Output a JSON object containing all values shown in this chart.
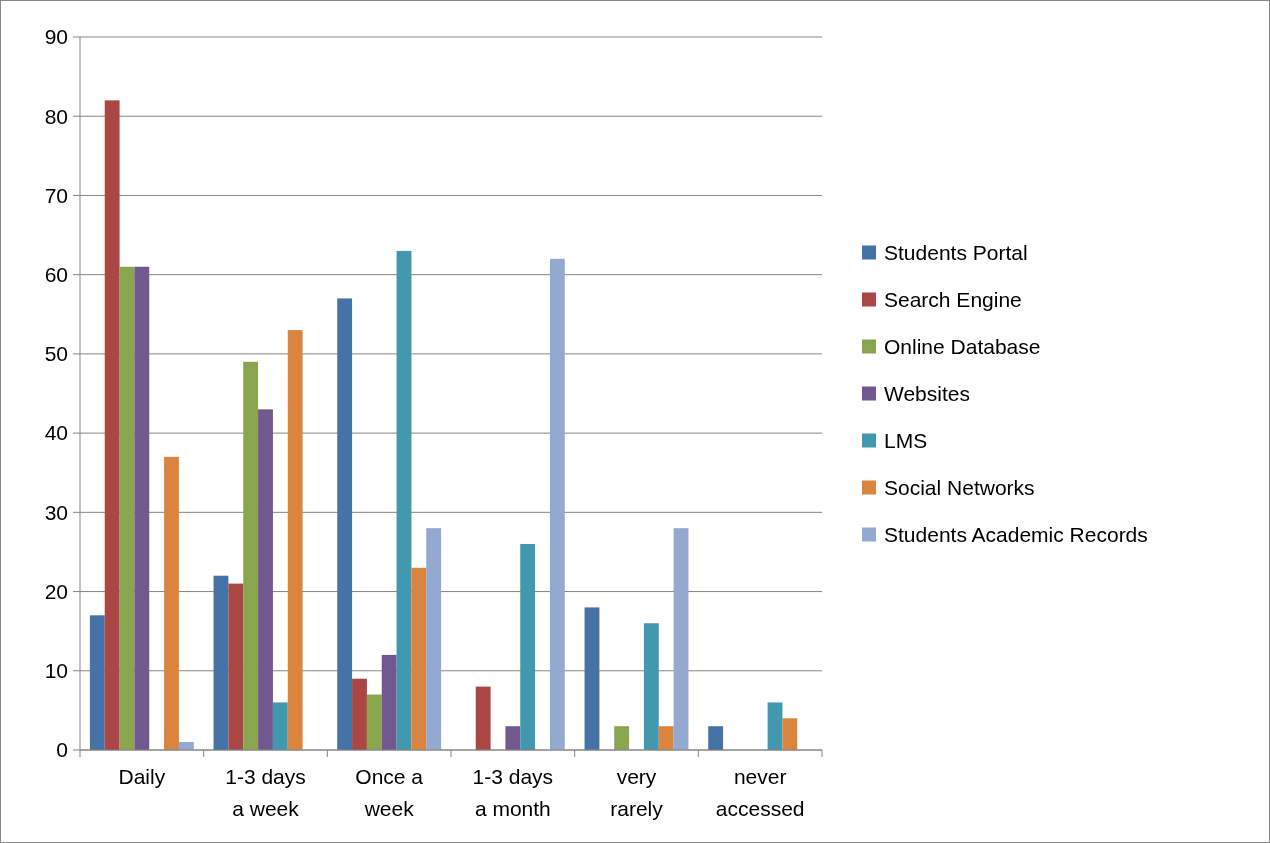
{
  "chart_data": {
    "type": "bar",
    "categories": [
      "Daily",
      "1-3 days a week",
      "Once a week",
      "1-3 days a month",
      "very rarely",
      "never accessed"
    ],
    "series": [
      {
        "name": "Students Portal",
        "color": "#4572a7",
        "values": [
          17,
          22,
          57,
          0,
          18,
          3
        ]
      },
      {
        "name": "Search Engine",
        "color": "#aa4643",
        "values": [
          82,
          21,
          9,
          8,
          0,
          0
        ]
      },
      {
        "name": "Online Database",
        "color": "#89a54e",
        "values": [
          61,
          49,
          7,
          0,
          3,
          0
        ]
      },
      {
        "name": "Websites",
        "color": "#71588f",
        "values": [
          61,
          43,
          12,
          3,
          0,
          0
        ]
      },
      {
        "name": "LMS",
        "color": "#4198af",
        "values": [
          0,
          6,
          63,
          26,
          16,
          6
        ]
      },
      {
        "name": "Social Networks",
        "color": "#db843d",
        "values": [
          37,
          53,
          23,
          0,
          3,
          4
        ]
      },
      {
        "name": "Students Academic Records",
        "color": "#93a9cf",
        "values": [
          1,
          0,
          28,
          62,
          28,
          0
        ]
      }
    ],
    "ylim": [
      0,
      90
    ],
    "yticks": [
      0,
      10,
      20,
      30,
      40,
      50,
      60,
      70,
      80,
      90
    ],
    "grid": "y",
    "legend": "right"
  }
}
